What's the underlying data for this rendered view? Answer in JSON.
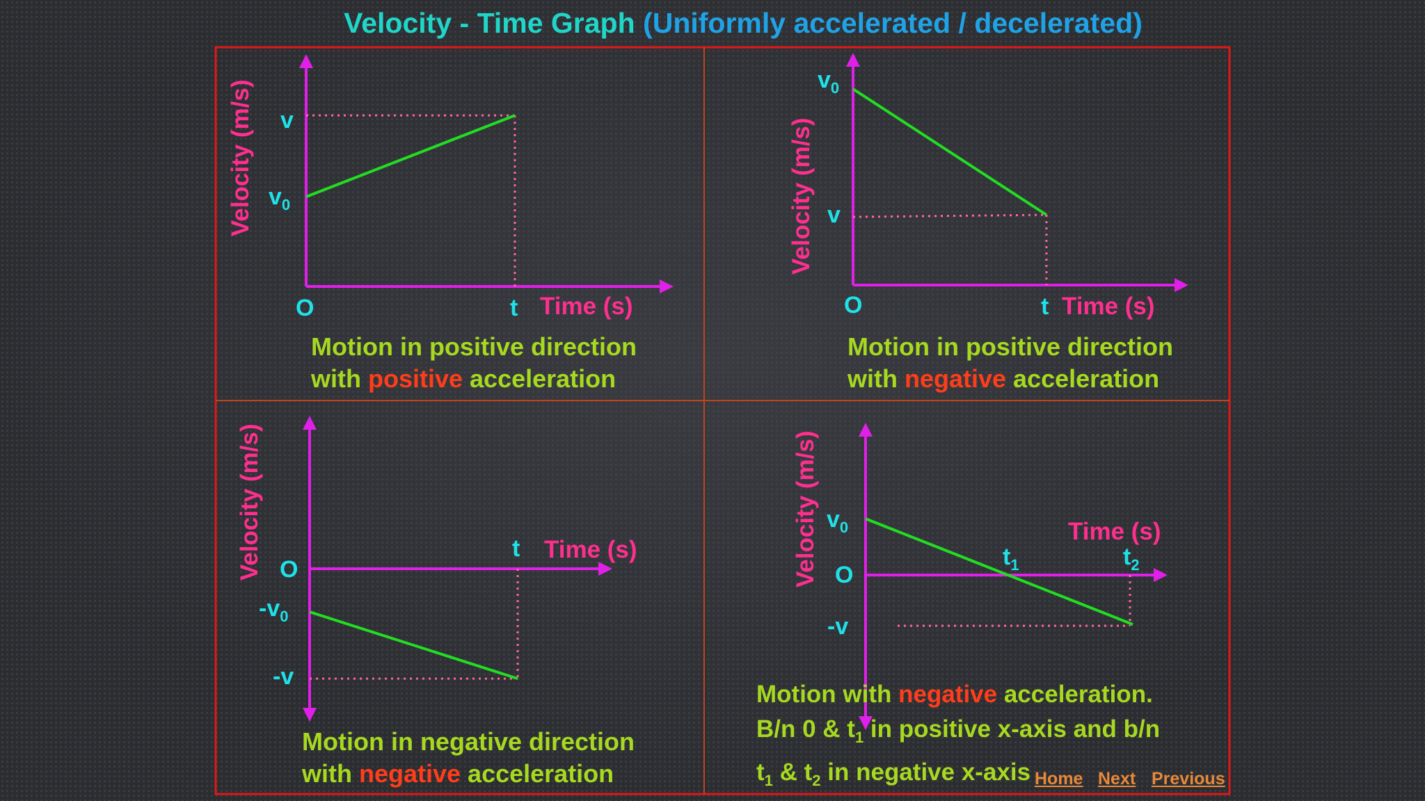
{
  "title": {
    "main": "Velocity - Time Graph",
    "sub": "(Uniformly accelerated / decelerated)"
  },
  "axis_labels": {
    "velocity": "Velocity (m/s)",
    "time": "Time (s)",
    "origin": "O"
  },
  "panels": [
    {
      "id": "positive-dir-positive-acc",
      "labels": {
        "v0": "v",
        "v0_sub": "0",
        "v": "v",
        "t": "t"
      },
      "caption": {
        "line1": "Motion in positive direction",
        "line2_a": "with ",
        "line2_red": "positive",
        "line2_b": " acceleration"
      }
    },
    {
      "id": "positive-dir-negative-acc",
      "labels": {
        "v0": "v",
        "v0_sub": "0",
        "v": "v",
        "t": "t"
      },
      "caption": {
        "line1": "Motion in positive direction",
        "line2_a": "with ",
        "line2_red": "negative",
        "line2_b": " acceleration"
      }
    },
    {
      "id": "negative-dir-negative-acc",
      "labels": {
        "v0": "-v",
        "v0_sub": "0",
        "v": "-v",
        "t": "t"
      },
      "caption": {
        "line1": "Motion in negative direction",
        "line2_a": "with ",
        "line2_red": "negative",
        "line2_b": " acceleration"
      }
    },
    {
      "id": "negative-acc-crossing",
      "labels": {
        "v0": "v",
        "v0_sub": "0",
        "v": "-v",
        "t1": "t",
        "t1_sub": "1",
        "t2": "t",
        "t2_sub": "2"
      },
      "caption": {
        "line1_a": "Motion with ",
        "line1_red": "negative",
        "line1_b": " acceleration.",
        "line2_a": "B/n 0 & t",
        "line2_sub": "1",
        "line2_b": " in positive x-axis and b/n",
        "line3_a": "t",
        "line3_sub1": "1",
        "line3_b": " & t",
        "line3_sub2": "2",
        "line3_c": " in negative x-axis"
      }
    }
  ],
  "nav": {
    "home": "Home",
    "next": "Next",
    "previous": "Previous"
  },
  "colors": {
    "axis": "#e020e8",
    "graph_line": "#22dd22",
    "guide": "#ff6699",
    "frame": "#e01818",
    "divider": "#c0431c",
    "caption": "#a6d91f",
    "emphasis": "#ff3d1a"
  }
}
